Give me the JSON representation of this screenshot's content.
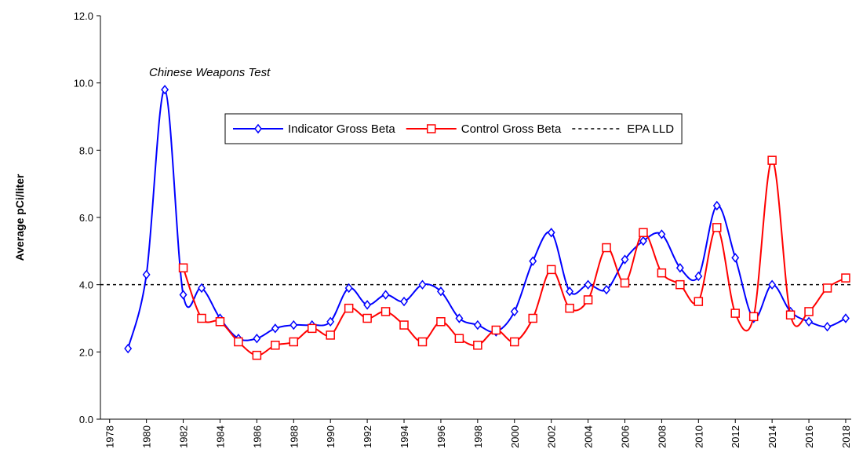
{
  "chart_data": {
    "type": "line",
    "y_label": "Average pCi/liter",
    "annotation": "Chinese Weapons Test",
    "x": [
      1978,
      1979,
      1980,
      1981,
      1982,
      1983,
      1984,
      1985,
      1986,
      1987,
      1988,
      1989,
      1990,
      1991,
      1992,
      1993,
      1994,
      1995,
      1996,
      1997,
      1998,
      1999,
      2000,
      2001,
      2002,
      2003,
      2004,
      2005,
      2006,
      2007,
      2008,
      2009,
      2010,
      2011,
      2012,
      2013,
      2014,
      2015,
      2016,
      2017,
      2018
    ],
    "series": [
      {
        "name": "Indicator Gross Beta",
        "color": "#0000ff",
        "marker": "diamond",
        "values": [
          null,
          2.1,
          4.3,
          9.8,
          3.7,
          3.9,
          3.0,
          2.4,
          2.4,
          2.7,
          2.8,
          2.8,
          2.9,
          3.9,
          3.4,
          3.7,
          3.5,
          4.0,
          3.8,
          3.0,
          2.8,
          2.6,
          3.2,
          4.7,
          5.55,
          3.8,
          4.0,
          3.85,
          4.75,
          5.3,
          5.5,
          4.5,
          4.25,
          6.35,
          4.8,
          3.0,
          4.0,
          3.2,
          2.9,
          2.75,
          3.0
        ]
      },
      {
        "name": "Control Gross Beta",
        "color": "#ff0000",
        "marker": "square",
        "values": [
          null,
          null,
          null,
          null,
          4.5,
          3.0,
          2.9,
          2.3,
          1.9,
          2.2,
          2.3,
          2.7,
          2.5,
          3.3,
          3.0,
          3.2,
          2.8,
          2.3,
          2.9,
          2.4,
          2.2,
          2.65,
          2.3,
          3.0,
          4.45,
          3.3,
          3.55,
          5.1,
          4.05,
          5.55,
          4.35,
          4.0,
          3.5,
          5.7,
          3.15,
          3.05,
          7.7,
          3.1,
          3.2,
          3.9,
          4.2
        ]
      }
    ],
    "reference_line": {
      "name": "EPA LLD",
      "value": 4,
      "color": "#000000"
    },
    "xlim": [
      1977.5,
      2018.3
    ],
    "xticks": [
      1978,
      1980,
      1982,
      1984,
      1986,
      1988,
      1990,
      1992,
      1994,
      1996,
      1998,
      2000,
      2002,
      2004,
      2006,
      2008,
      2010,
      2012,
      2014,
      2016,
      2018
    ],
    "ylim": [
      0,
      12
    ],
    "yticks": [
      {
        "value": 0,
        "label": "0.0"
      },
      {
        "value": 2,
        "label": "2.0"
      },
      {
        "value": 4,
        "label": "4.0"
      },
      {
        "value": 6,
        "label": "6.0"
      },
      {
        "value": 8,
        "label": "8.0"
      },
      {
        "value": 10,
        "label": "10.0"
      },
      {
        "value": 12,
        "label": "12.0"
      }
    ],
    "grid": false
  }
}
